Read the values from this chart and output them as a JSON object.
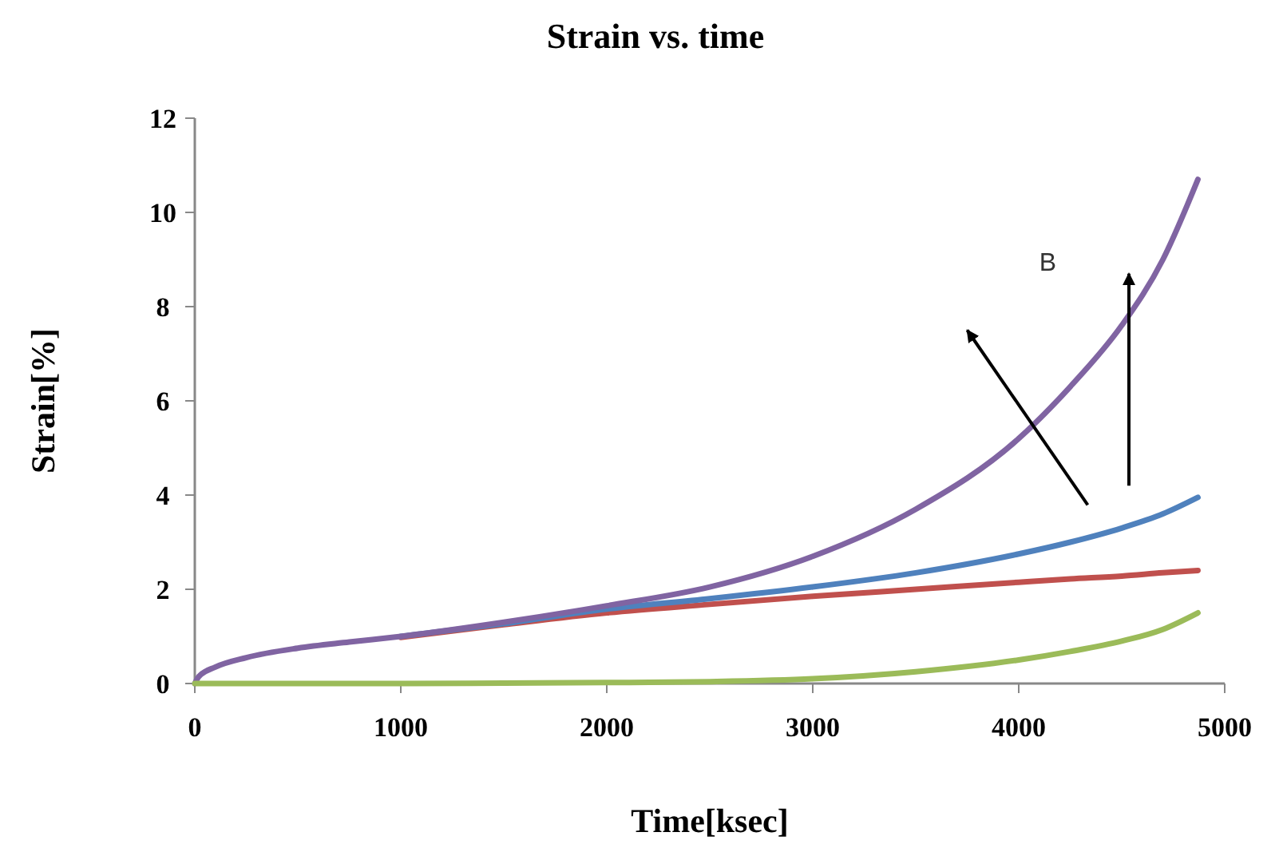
{
  "chart_data": {
    "type": "line",
    "title": "Strain vs. time",
    "xlabel": "Time[ksec]",
    "ylabel": "Strain[%]",
    "xlim": [
      0,
      5000
    ],
    "xticks": [
      0,
      1000,
      2000,
      3000,
      4000,
      5000
    ],
    "ylim": [
      0,
      12
    ],
    "yticks": [
      0,
      2,
      4,
      6,
      8,
      10,
      12
    ],
    "grid": false,
    "marker": "none",
    "line_style": "solid",
    "annotations": [
      "B"
    ],
    "x": [
      0,
      20,
      100,
      250,
      500,
      750,
      1000,
      1500,
      2000,
      2500,
      3000,
      3500,
      4000,
      4250,
      4500,
      4700,
      4870
    ],
    "series": [
      {
        "color": "#c0504d",
        "values": [
          null,
          null,
          null,
          null,
          null,
          null,
          0.98,
          1.25,
          1.5,
          1.68,
          1.85,
          2.0,
          2.15,
          2.22,
          2.28,
          2.35,
          2.4
        ]
      },
      {
        "color": "#4f81bd",
        "values": [
          null,
          null,
          null,
          null,
          null,
          null,
          1.0,
          1.27,
          1.58,
          1.8,
          2.05,
          2.35,
          2.75,
          3.0,
          3.3,
          3.6,
          3.95
        ]
      },
      {
        "color": "#8064a2",
        "values": [
          0,
          0.15,
          0.35,
          0.55,
          0.75,
          0.88,
          1.0,
          1.3,
          1.65,
          2.05,
          2.7,
          3.7,
          5.2,
          6.3,
          7.6,
          9.0,
          10.7
        ]
      },
      {
        "color": "#9bbb59",
        "values": [
          0,
          0,
          0,
          0,
          0,
          0,
          0,
          0.01,
          0.02,
          0.04,
          0.1,
          0.25,
          0.5,
          0.68,
          0.9,
          1.15,
          1.5
        ]
      }
    ]
  }
}
